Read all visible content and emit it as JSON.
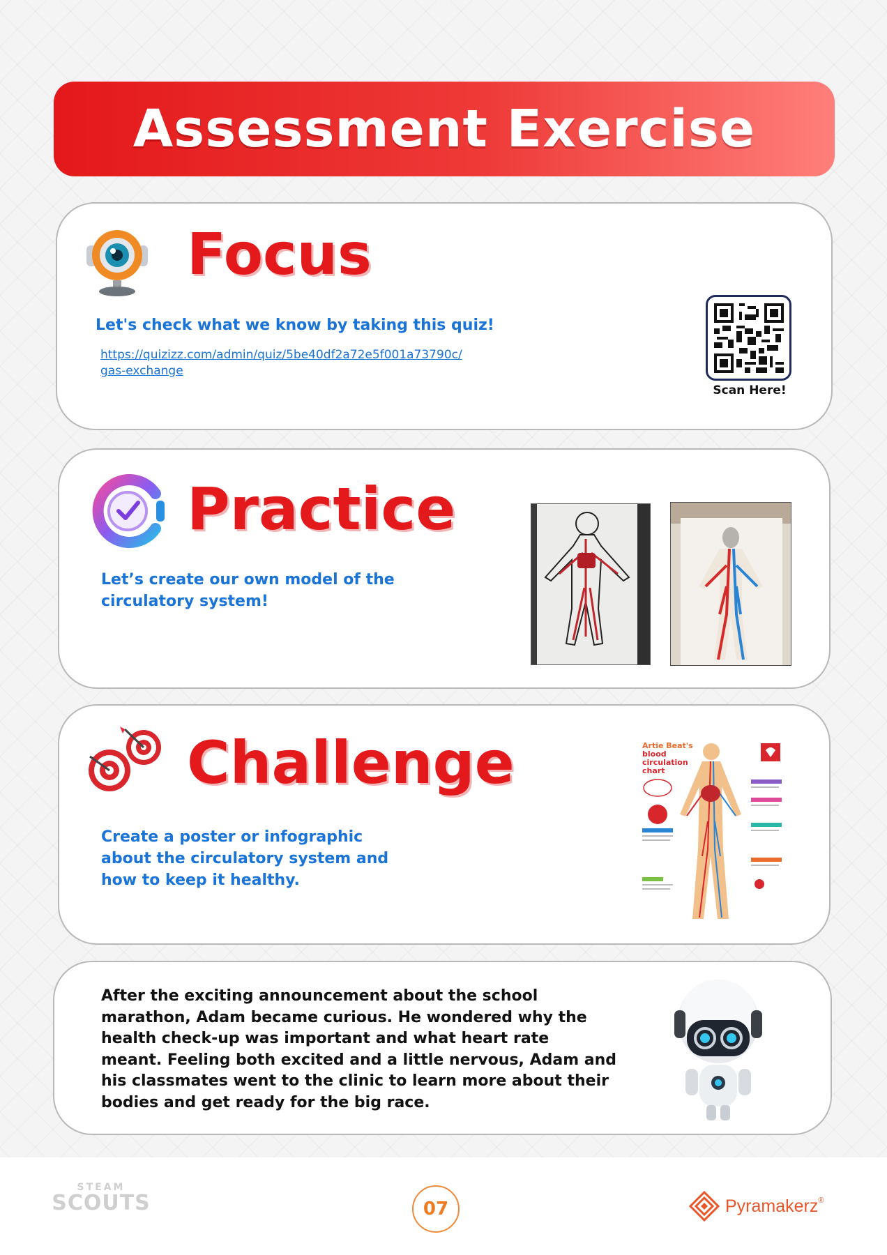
{
  "banner": {
    "title": "Assessment Exercise"
  },
  "focus": {
    "heading": "Focus",
    "icon": "webcam-robot-icon",
    "text": "Let's check what we know by taking this quiz!",
    "link_line1": "https://quizizz.com/admin/quiz/5be40df2a72e5f001a73790c/",
    "link_line2": "gas-exchange",
    "qr_label": "Scan Here!"
  },
  "practice": {
    "heading": "Practice",
    "icon": "clock-check-icon",
    "text_line1": "Let’s create our own model of the",
    "text_line2": "circulatory system!"
  },
  "challenge": {
    "heading": "Challenge",
    "icon": "target-dart-icon",
    "text_line1": "Create a poster or infographic",
    "text_line2": "about the circulatory system and",
    "text_line3": "how to keep it healthy.",
    "poster_title1": "Artie Beat's",
    "poster_title2": "blood",
    "poster_title3": "circulation",
    "poster_title4": "chart"
  },
  "story": {
    "lines": [
      "After the exciting announcement about the school",
      "marathon, Adam became curious. He wondered why the",
      "health check-up was important and what heart rate",
      "meant. Feeling both excited and a little nervous, Adam and",
      "his classmates went to the clinic to learn more about their",
      "bodies and get ready for the big race."
    ],
    "icon": "robot-mascot-icon"
  },
  "footer": {
    "steam_top": "STEAM",
    "steam_bottom": "SCOUTS",
    "page_number": "07",
    "brand": "Pyramakerz",
    "brand_mark": "®"
  },
  "colors": {
    "banner_red": "#e4181a",
    "heading_red": "#e4191c",
    "body_blue": "#1a73d6",
    "page_orange": "#ee7b22",
    "brand_orange": "#e8562a"
  }
}
